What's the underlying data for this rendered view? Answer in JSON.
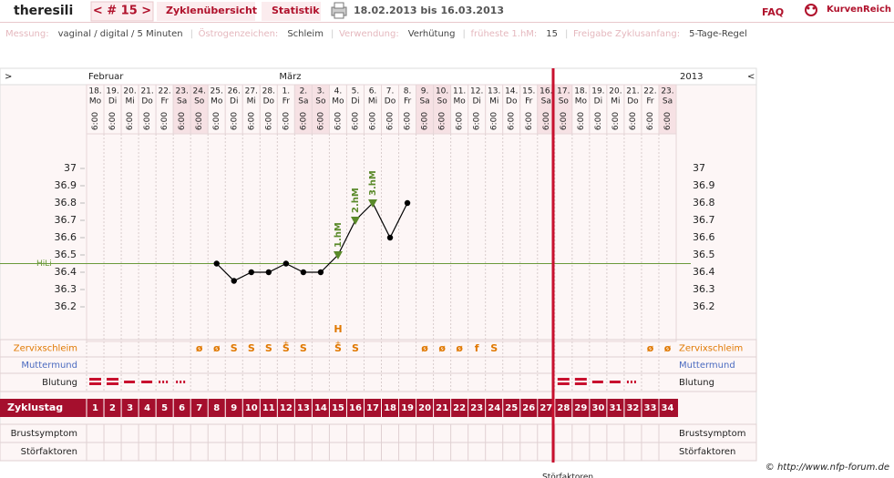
{
  "header": {
    "user": "theresili",
    "cycle_nav": "< # 15 >",
    "tabs": [
      "Zyklenübersicht",
      "Statistik"
    ],
    "period": "18.02.2013 bis 16.03.2013",
    "faq": "FAQ",
    "logo": "KurvenReich"
  },
  "settings": [
    {
      "label": "Messung:",
      "value": "vaginal / digital / 5 Minuten"
    },
    {
      "label": "Östrogenzeichen:",
      "value": "Schleim"
    },
    {
      "label": "Verwendung:",
      "value": "Verhütung"
    },
    {
      "label": "früheste 1.hM:",
      "value": "15"
    },
    {
      "label": "Freigabe Zyklusanfang:",
      "value": "5-Tage-Regel"
    }
  ],
  "table": {
    "nav_left": ">",
    "nav_right": "<",
    "months": [
      "Februar",
      "März"
    ],
    "year": "2013",
    "days": [
      {
        "date": "18.",
        "weekday": "Mo",
        "time": "6:00"
      },
      {
        "date": "19.",
        "weekday": "Di",
        "time": "6:00"
      },
      {
        "date": "20.",
        "weekday": "Mi",
        "time": "6:00"
      },
      {
        "date": "21.",
        "weekday": "Do",
        "time": "6:00"
      },
      {
        "date": "22.",
        "weekday": "Fr",
        "time": "6:00"
      },
      {
        "date": "23.",
        "weekday": "Sa",
        "time": "6:00"
      },
      {
        "date": "24.",
        "weekday": "So",
        "time": "6:00"
      },
      {
        "date": "25.",
        "weekday": "Mo",
        "time": "6:00"
      },
      {
        "date": "26.",
        "weekday": "Di",
        "time": "6:00"
      },
      {
        "date": "27.",
        "weekday": "Mi",
        "time": "6:00"
      },
      {
        "date": "28.",
        "weekday": "Do",
        "time": "6:00"
      },
      {
        "date": "1.",
        "weekday": "Fr",
        "time": "6:00"
      },
      {
        "date": "2.",
        "weekday": "Sa",
        "time": "6:00"
      },
      {
        "date": "3.",
        "weekday": "So",
        "time": "6:00"
      },
      {
        "date": "4.",
        "weekday": "Mo",
        "time": "6:00"
      },
      {
        "date": "5.",
        "weekday": "Di",
        "time": "6:00"
      },
      {
        "date": "6.",
        "weekday": "Mi",
        "time": "6:00"
      },
      {
        "date": "7.",
        "weekday": "Do",
        "time": "6:00"
      },
      {
        "date": "8.",
        "weekday": "Fr",
        "time": "6:00"
      },
      {
        "date": "9.",
        "weekday": "Sa",
        "time": "6:00"
      },
      {
        "date": "10.",
        "weekday": "So",
        "time": "6:00"
      },
      {
        "date": "11.",
        "weekday": "Mo",
        "time": "6:00"
      },
      {
        "date": "12.",
        "weekday": "Di",
        "time": "6:00"
      },
      {
        "date": "13.",
        "weekday": "Mi",
        "time": "6:00"
      },
      {
        "date": "14.",
        "weekday": "Do",
        "time": "6:00"
      },
      {
        "date": "15.",
        "weekday": "Fr",
        "time": "6:00"
      },
      {
        "date": "16.",
        "weekday": "Sa",
        "time": "6:00"
      },
      {
        "date": "17.",
        "weekday": "So",
        "time": "6:00"
      },
      {
        "date": "18.",
        "weekday": "Mo",
        "time": "6:00"
      },
      {
        "date": "19.",
        "weekday": "Di",
        "time": "6:00"
      },
      {
        "date": "20.",
        "weekday": "Mi",
        "time": "6:00"
      },
      {
        "date": "21.",
        "weekday": "Do",
        "time": "6:00"
      },
      {
        "date": "22.",
        "weekday": "Fr",
        "time": "6:00"
      },
      {
        "date": "23.",
        "weekday": "Sa",
        "time": "6:00"
      }
    ],
    "rows": {
      "cervix": "Zervixschleim",
      "cervix_os": "Muttermund",
      "bleeding": "Blutung",
      "cycle_day": "Zyklustag",
      "breast": "Brustsymptom",
      "disturb": "Störfaktoren"
    },
    "cervix": [
      null,
      null,
      null,
      null,
      null,
      null,
      "ø",
      "ø",
      "S",
      "S",
      "S",
      "S",
      "S",
      null,
      "S",
      "S",
      null,
      null,
      null,
      "ø",
      "ø",
      "ø",
      "f",
      "S",
      null,
      null,
      null,
      null,
      null,
      null,
      null,
      null,
      "ø",
      "ø"
    ],
    "cervix_plus": [
      null,
      null,
      null,
      null,
      null,
      null,
      null,
      null,
      null,
      null,
      null,
      "+",
      null,
      null,
      "+",
      null,
      null,
      null,
      null,
      null,
      null,
      null,
      null,
      null,
      null,
      null,
      null,
      null,
      null,
      null,
      null,
      null,
      null,
      null
    ],
    "peak": [
      null,
      null,
      null,
      null,
      null,
      null,
      null,
      null,
      null,
      null,
      null,
      null,
      null,
      null,
      "H",
      null,
      null,
      null,
      null,
      null,
      null,
      null,
      null,
      null,
      null,
      null,
      null,
      null,
      null,
      null,
      null,
      null,
      null,
      null
    ]
  },
  "chart_data": {
    "type": "line",
    "categories": [
      1,
      2,
      3,
      4,
      5,
      6,
      7,
      8,
      9,
      10,
      11,
      12,
      13,
      14,
      15,
      16,
      17,
      18,
      19,
      20,
      21,
      22,
      23,
      24,
      25,
      26,
      27,
      28,
      29,
      30,
      31,
      32,
      33,
      34
    ],
    "series": [
      {
        "color": "#000000",
        "values": [
          null,
          null,
          null,
          null,
          null,
          null,
          null,
          36.45,
          36.35,
          36.4,
          36.4,
          36.45,
          36.4,
          36.4,
          36.5,
          36.7,
          36.8,
          36.6,
          36.8,
          null,
          null,
          null,
          null,
          null,
          null,
          null,
          null,
          null,
          null,
          null,
          null,
          null,
          null,
          null
        ]
      }
    ],
    "hm_labels": [
      null,
      null,
      null,
      null,
      null,
      null,
      null,
      null,
      null,
      null,
      null,
      null,
      null,
      null,
      "1.hM",
      "2.hM",
      "3.hM",
      null,
      null,
      null,
      null,
      null,
      null,
      null,
      null,
      null,
      null,
      null,
      null,
      null,
      null,
      null,
      null,
      null
    ],
    "ylim": [
      36.0,
      37.2
    ],
    "yticks": [
      37,
      36.9,
      36.8,
      36.7,
      36.6,
      36.5,
      36.4,
      36.3,
      36.2
    ],
    "coverline": {
      "label": "HiLi",
      "value": 36.45,
      "color": "#6a9a3a"
    }
  },
  "footer": {
    "copyright": "© http://www.nfp-forum.de",
    "cut_label": "Störfaktoren"
  }
}
